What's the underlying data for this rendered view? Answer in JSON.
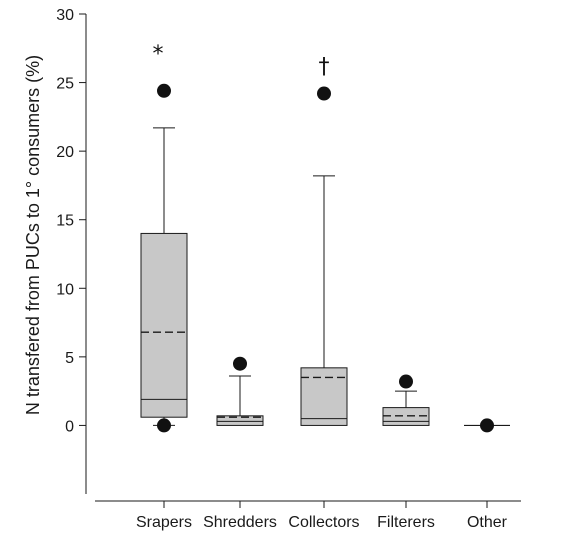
{
  "chart_data": {
    "type": "box",
    "ylabel": "N transfered from PUCs to 1° consumers (%)",
    "ylim": [
      -5,
      30
    ],
    "yticks": [
      0,
      5,
      10,
      15,
      20,
      25,
      30
    ],
    "ytick_labels": [
      "0",
      "5",
      "10",
      "15",
      "20",
      "25",
      "30"
    ],
    "grid": false,
    "categories": [
      "Srapers",
      "Shredders",
      "Collectors",
      "Filterers",
      "Other"
    ],
    "boxes": [
      {
        "category": "Srapers",
        "q1": 0.6,
        "median": 1.9,
        "mean": 6.8,
        "q3": 14.0,
        "whisker_low": 0,
        "whisker_high": 21.7,
        "outliers": [
          24.4,
          0
        ],
        "marker": "*"
      },
      {
        "category": "Shredders",
        "q1": 0.0,
        "median": 0.3,
        "mean": 0.6,
        "q3": 0.7,
        "whisker_low": 0,
        "whisker_high": 3.6,
        "outliers": [
          4.5
        ],
        "marker": ""
      },
      {
        "category": "Collectors",
        "q1": 0.0,
        "median": 0.5,
        "mean": 3.5,
        "q3": 4.2,
        "whisker_low": 0,
        "whisker_high": 18.2,
        "outliers": [
          24.2
        ],
        "marker": "†"
      },
      {
        "category": "Filterers",
        "q1": 0.0,
        "median": 0.3,
        "mean": 0.7,
        "q3": 1.3,
        "whisker_low": 0,
        "whisker_high": 2.5,
        "outliers": [
          3.2
        ],
        "marker": ""
      },
      {
        "category": "Other",
        "q1": 0.0,
        "median": 0.0,
        "mean": 0.0,
        "q3": 0.0,
        "whisker_low": 0,
        "whisker_high": 0.0,
        "outliers": [
          0
        ],
        "marker": ""
      }
    ],
    "colors": {
      "box_fill": "#c8c8c8",
      "stroke": "#1a1a1a",
      "outlier": "#111111"
    }
  }
}
